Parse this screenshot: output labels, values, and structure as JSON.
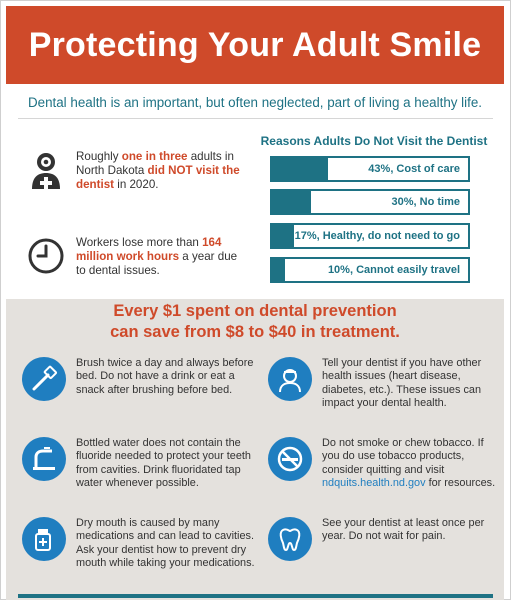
{
  "header": {
    "title": "Protecting Your Adult Smile"
  },
  "subtitle": "Dental health is an important, but often neglected, part of living a healthy life.",
  "stats": [
    {
      "icon": "dentist-icon",
      "pre": "Roughly ",
      "hl1": "one in three",
      "mid": " adults in North Dakota ",
      "hl2": "did NOT visit the dentist",
      "post": " in 2020."
    },
    {
      "icon": "clock-icon",
      "pre": "Workers lose more than ",
      "hl1": "164 million work hours",
      "post": " a year due to dental issues."
    }
  ],
  "chart_data": {
    "type": "bar",
    "title": "Reasons Adults Do Not Visit the Dentist",
    "categories": [
      "Cost of care",
      "No time",
      "Healthy, do not need to go",
      "Cannot easily travel"
    ],
    "values": [
      43,
      30,
      17,
      10
    ],
    "labels": [
      "43%, Cost of care",
      "30%, No time",
      "17%, Healthy, do not need to go",
      "10%, Cannot easily travel"
    ],
    "color": "#1e7284"
  },
  "savings": {
    "line1": "Every $1 spent on dental prevention",
    "line2": "can save from $8 to $40 in treatment."
  },
  "tips": [
    {
      "icon": "toothbrush-icon",
      "text": "Brush twice a day and always before bed. Do not have a drink or eat a snack after brushing before bed."
    },
    {
      "icon": "nurse-icon",
      "text": "Tell your dentist if you have other health issues (heart disease, diabetes, etc.). These issues can impact your dental health."
    },
    {
      "icon": "faucet-icon",
      "text": "Bottled water does not contain the fluoride needed to protect your teeth from cavities. Drink fluoridated tap water whenever possible."
    },
    {
      "icon": "no-smoking-icon",
      "text": "Do not smoke or chew tobacco. If you do use tobacco products, consider quitting and visit ",
      "link": "ndquits.health.nd.gov",
      "post": " for resources."
    },
    {
      "icon": "medication-icon",
      "text": "Dry mouth is caused by many medications and can lead to cavities. Ask your dentist how to prevent dry mouth while taking your medications."
    },
    {
      "icon": "tooth-icon",
      "text": "See your dentist at least once per year. Do not wait for pain."
    }
  ],
  "colors": {
    "accent": "#cf4a2a",
    "teal": "#1e7284",
    "blue": "#1f7ec0",
    "panel": "#e4e1dd"
  }
}
